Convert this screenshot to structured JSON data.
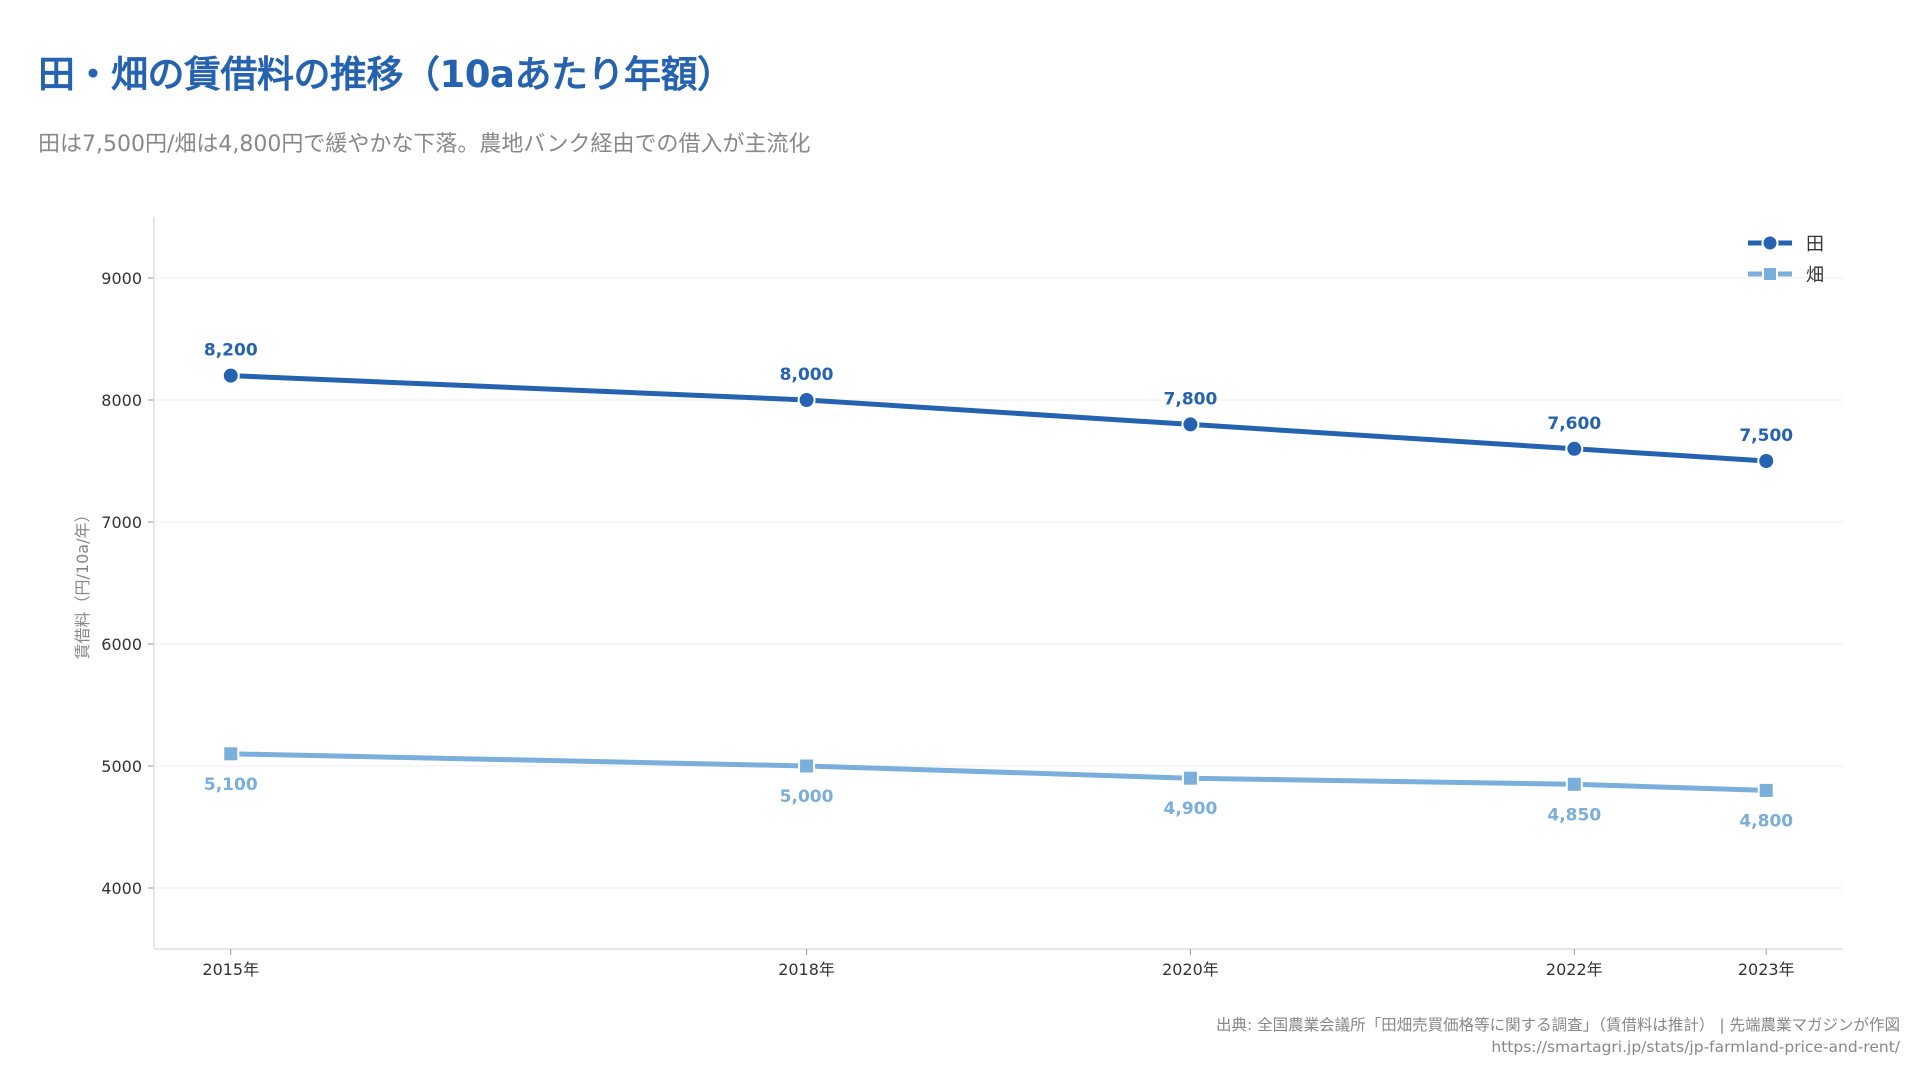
{
  "header": {
    "title": "田・畑の賃借料の推移（10aあたり年額）",
    "subtitle": "田は7,500円/畑は4,800円で緩やかな下落。農地バンク経由での借入が主流化"
  },
  "footer": {
    "source": "出典: 全国農業会議所「田畑売買価格等に関する調査」（賃借料は推計） | 先端農業マガジンが作図",
    "url": "https://smartagri.jp/stats/jp-farmland-price-and-rent/"
  },
  "chart_data": {
    "type": "line",
    "title": "田・畑の賃借料の推移（10aあたり年額）",
    "xlabel": "",
    "ylabel": "賃借料（円/10a/年）",
    "x": [
      2015,
      2018,
      2020,
      2022,
      2023
    ],
    "x_tick_labels": [
      "2015年",
      "2018年",
      "2020年",
      "2022年",
      "2023年"
    ],
    "xlim": [
      2014.6,
      2023.4
    ],
    "ylim": [
      3500,
      9500
    ],
    "y_ticks": [
      4000,
      5000,
      6000,
      7000,
      8000,
      9000
    ],
    "grid": true,
    "legend_position": "top-right",
    "series": [
      {
        "name": "田",
        "marker": "circle",
        "color": "#2563b0",
        "values": [
          8200,
          8000,
          7800,
          7600,
          7500
        ],
        "labels": [
          "8,200",
          "8,000",
          "7,800",
          "7,600",
          "7,500"
        ]
      },
      {
        "name": "畑",
        "marker": "square",
        "color": "#7aaedb",
        "values": [
          5100,
          5000,
          4900,
          4850,
          4800
        ],
        "labels": [
          "5,100",
          "5,000",
          "4,900",
          "4,850",
          "4,800"
        ]
      }
    ]
  }
}
